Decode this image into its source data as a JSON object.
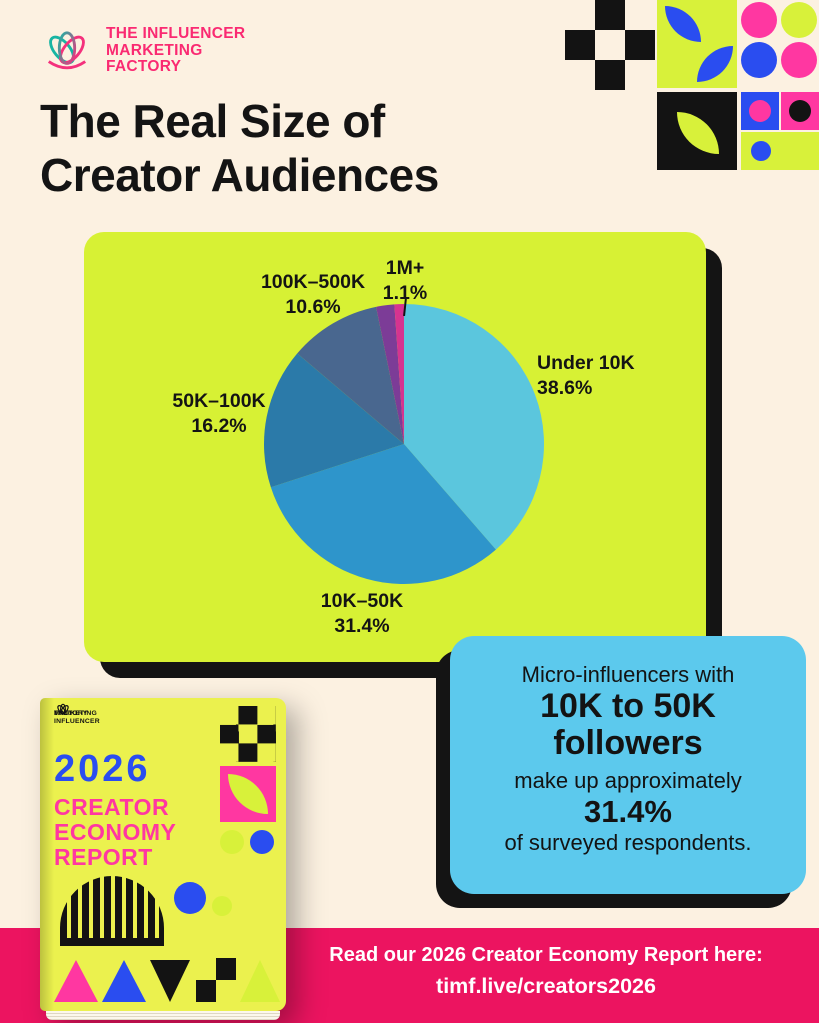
{
  "page": {
    "background": "#fcf1e1",
    "title_line1": "The Real Size of",
    "title_line2": "Creator Audiences"
  },
  "logo": {
    "line1": "THE INFLUENCER",
    "line2": "MARKETING",
    "line3": "FACTORY",
    "brand_pink": "#fa2a72",
    "brand_teal": "#18b5a3"
  },
  "chart_data": {
    "type": "pie",
    "title": "The Real Size of Creator Audiences",
    "panel_color": "#d7f134",
    "legend_position": "labels-around-pie",
    "slices": [
      {
        "label": "Under 10K",
        "value": 38.6,
        "display": "38.6%",
        "color": "#5bc6dd"
      },
      {
        "label": "10K–50K",
        "value": 31.4,
        "display": "31.4%",
        "color": "#2e95cb"
      },
      {
        "label": "50K–100K",
        "value": 16.2,
        "display": "16.2%",
        "color": "#2b7aa9"
      },
      {
        "label": "100K–500K",
        "value": 10.6,
        "display": "10.6%",
        "color": "#49678f"
      },
      {
        "label": "",
        "value": 2.1,
        "display": "",
        "color": "#7c3c97"
      },
      {
        "label": "1M+",
        "value": 1.1,
        "display": "1.1%",
        "color": "#d63390"
      }
    ]
  },
  "callout": {
    "background": "#5cc9ed",
    "line1": "Micro-influencers with",
    "line2": "10K to 50K",
    "line3": "followers",
    "line4": "make up approximately",
    "line5": "31.4%",
    "line6": "of surveyed respondents."
  },
  "report_cover": {
    "logo_line1": "THE INFLUENCER",
    "logo_line2": "MARKETING",
    "logo_line3": "FACTORY",
    "year": "2026",
    "title_line1": "CREATOR",
    "title_line2": "ECONOMY",
    "title_line3": "REPORT"
  },
  "footer": {
    "background": "#ec1460",
    "line1": "Read our 2026 Creator Economy Report here:",
    "line2": "timf.live/creators2026"
  }
}
